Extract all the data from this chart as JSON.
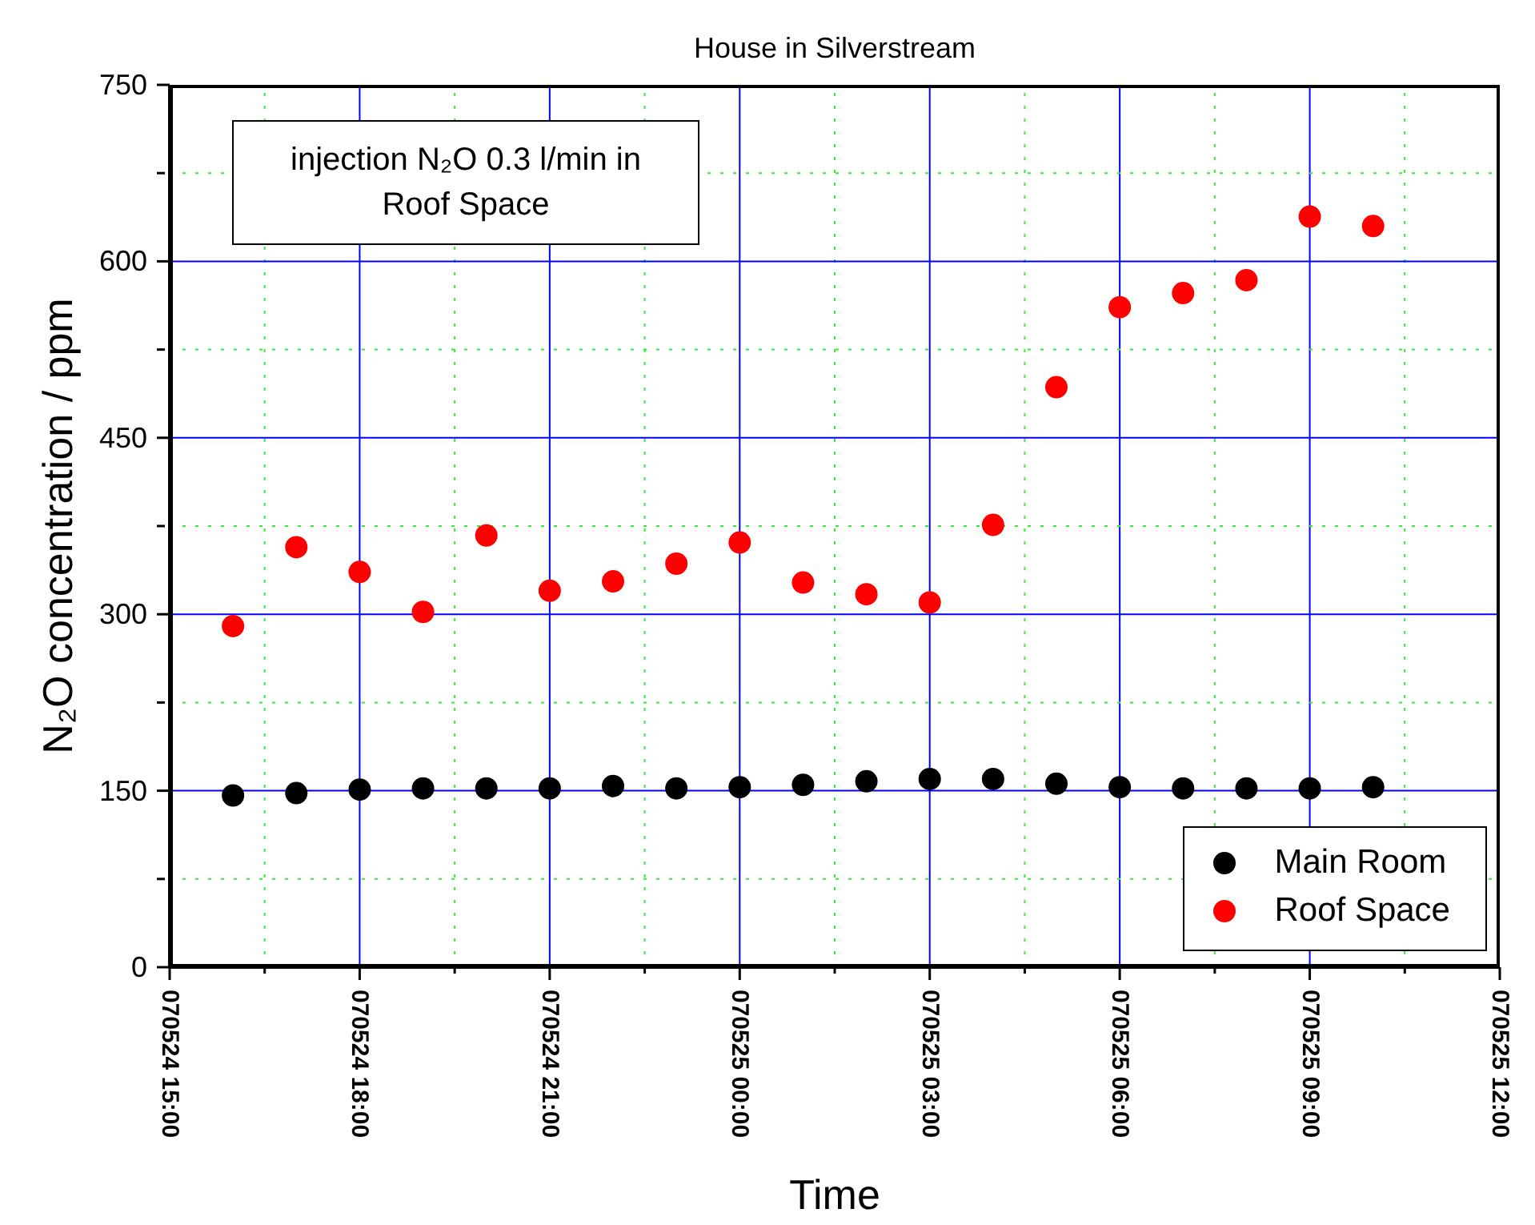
{
  "chart_data": {
    "type": "scatter",
    "title": "House in Silverstream",
    "xlabel": "Time",
    "ylabel": "N₂O concentration / ppm",
    "annotations": [
      "injection N₂O 0.3 l/min in Roof Space"
    ],
    "x": [
      "--05-24T16:00",
      "--05-24T17:00",
      "--05-24T18:00",
      "--05-24T19:00",
      "--05-24T20:00",
      "--05-24T21:00",
      "--05-24T22:00",
      "--05-24T23:00",
      "--05-25T00:00",
      "--05-25T01:00",
      "--05-25T02:00",
      "--05-25T03:00",
      "--05-25T04:00",
      "--05-25T05:00",
      "--05-25T06:00",
      "--05-25T07:00",
      "--05-25T08:00",
      "--05-25T09:00",
      "--05-25T10:00"
    ],
    "series": [
      {
        "name": "Main Room",
        "color": "#000000",
        "values": [
          146,
          148,
          151,
          152,
          152,
          152,
          154,
          152,
          153,
          155,
          158,
          160,
          160,
          156,
          153,
          152,
          152,
          152,
          153
        ]
      },
      {
        "name": "Roof Space",
        "color": "#ff0000",
        "values": [
          290,
          357,
          336,
          302,
          367,
          320,
          328,
          343,
          361,
          327,
          317,
          310,
          376,
          493,
          561,
          573,
          584,
          638,
          630
        ]
      }
    ],
    "xlim": [
      "--05-24T15:00",
      "--05-25T12:00"
    ],
    "xticks": [
      {
        "value": "--05-24T15:00",
        "label": "070524 15:00"
      },
      {
        "value": "--05-24T16:30",
        "label": null
      },
      {
        "value": "--05-24T18:00",
        "label": "070524 18:00"
      },
      {
        "value": "--05-24T19:30",
        "label": null
      },
      {
        "value": "--05-24T21:00",
        "label": "070524 21:00"
      },
      {
        "value": "--05-24T22:30",
        "label": null
      },
      {
        "value": "--05-25T00:00",
        "label": "070525 00:00"
      },
      {
        "value": "--05-25T01:30",
        "label": null
      },
      {
        "value": "--05-25T03:00",
        "label": "070525 03:00"
      },
      {
        "value": "--05-25T04:30",
        "label": null
      },
      {
        "value": "--05-25T06:00",
        "label": "070525 06:00"
      },
      {
        "value": "--05-25T07:30",
        "label": null
      },
      {
        "value": "--05-25T09:00",
        "label": "070525 09:00"
      },
      {
        "value": "--05-25T10:30",
        "label": null
      },
      {
        "value": "--05-25T12:00",
        "label": "070525 12:00"
      }
    ],
    "ylim": [
      0,
      750
    ],
    "yticks": [
      0,
      {
        "value": 75,
        "label": null
      },
      150,
      {
        "value": 225,
        "label": null
      },
      300,
      {
        "value": 375,
        "label": null
      },
      450,
      {
        "value": 525,
        "label": null
      },
      600,
      {
        "value": 675,
        "label": null
      },
      750
    ],
    "grid": true,
    "legend": "bottom right",
    "marker": "circle"
  }
}
